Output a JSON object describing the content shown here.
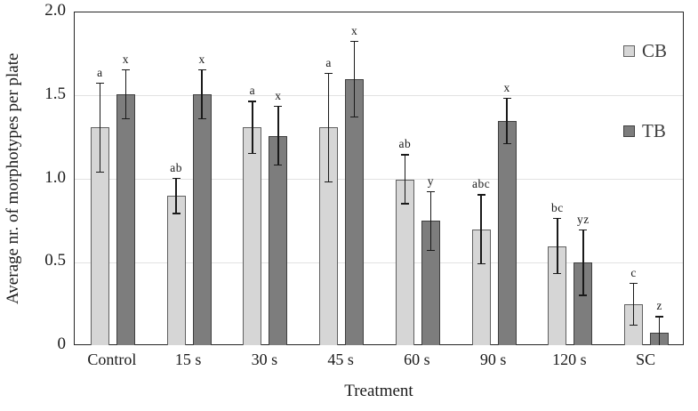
{
  "chart_data": {
    "type": "bar",
    "title": "",
    "xlabel": "Treatment",
    "ylabel": "Average nr. of morphotypes per plate",
    "ylim": [
      0,
      2.0
    ],
    "yticks": [
      {
        "value": 0,
        "label": "0"
      },
      {
        "value": 0.5,
        "label": "0.5"
      },
      {
        "value": 1.0,
        "label": "1.0"
      },
      {
        "value": 1.5,
        "label": "1.5"
      },
      {
        "value": 2.0,
        "label": "2.0"
      }
    ],
    "grid": true,
    "legend_position": "inside-top-right",
    "categories": [
      "Control",
      "15 s",
      "30 s",
      "45 s",
      "60 s",
      "90 s",
      "120 s",
      "SC"
    ],
    "series": [
      {
        "name": "CB",
        "fill": "#d6d6d6",
        "border": "#606060",
        "values": [
          1.31,
          0.9,
          1.31,
          1.31,
          1.0,
          0.7,
          0.6,
          0.25
        ],
        "errors": [
          0.27,
          0.11,
          0.16,
          0.33,
          0.15,
          0.21,
          0.17,
          0.13
        ],
        "sig_letters": [
          "a",
          "ab",
          "a",
          "a",
          "ab",
          "abc",
          "bc",
          "c"
        ]
      },
      {
        "name": "TB",
        "fill": "#7d7d7d",
        "border": "#3f3f3f",
        "values": [
          1.51,
          1.51,
          1.26,
          1.6,
          0.75,
          1.35,
          0.5,
          0.08
        ],
        "errors": [
          0.15,
          0.15,
          0.18,
          0.23,
          0.18,
          0.14,
          0.2,
          0.1
        ],
        "sig_letters": [
          "x",
          "x",
          "x",
          "x",
          "y",
          "x",
          "yz",
          "z"
        ]
      }
    ]
  }
}
